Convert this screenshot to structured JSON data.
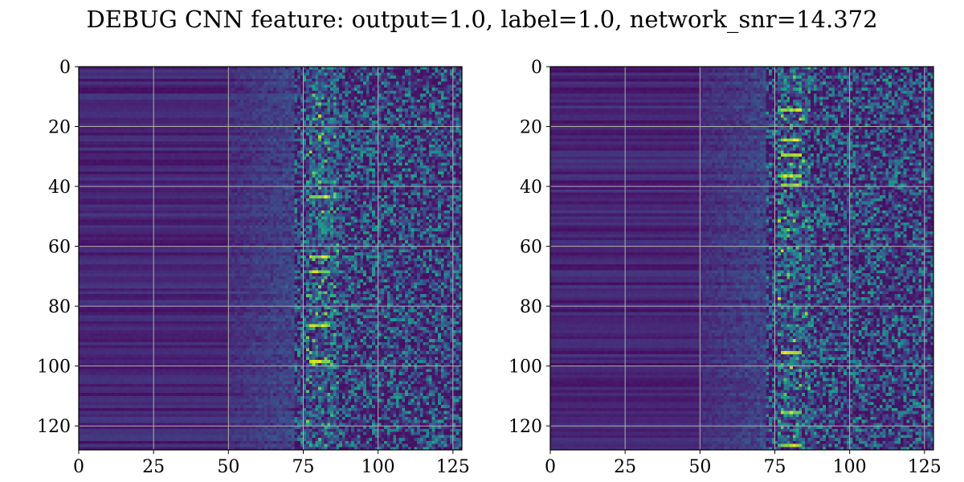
{
  "title": "DEBUG CNN feature: output=1.0, label=1.0, network_snr=14.372",
  "chart_data": [
    {
      "type": "heatmap",
      "title": "",
      "xlabel": "",
      "ylabel": "",
      "xlim": [
        0,
        128
      ],
      "ylim": [
        128,
        0
      ],
      "xticks": [
        0,
        25,
        50,
        75,
        100,
        125
      ],
      "yticks": [
        0,
        20,
        40,
        60,
        80,
        100,
        120
      ],
      "grid": true,
      "colormap": "viridis",
      "grid_color": "#b0b0b0",
      "bright_rows_near_x80": [
        43,
        63,
        68,
        86,
        98
      ]
    },
    {
      "type": "heatmap",
      "title": "",
      "xlabel": "",
      "ylabel": "",
      "xlim": [
        0,
        128
      ],
      "ylim": [
        128,
        0
      ],
      "xticks": [
        0,
        25,
        50,
        75,
        100,
        125
      ],
      "yticks": [
        0,
        20,
        40,
        60,
        80,
        100,
        120
      ],
      "grid": true,
      "colormap": "viridis",
      "grid_color": "#b0b0b0",
      "bright_rows_near_x80": [
        14,
        24,
        29,
        36,
        39,
        95,
        115,
        126
      ]
    }
  ]
}
